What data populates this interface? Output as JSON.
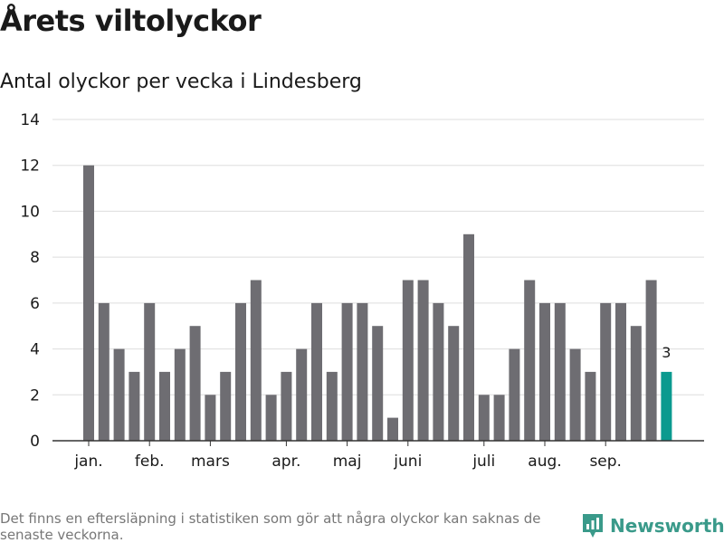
{
  "header": {
    "title": "Årets viltolyckor",
    "subtitle": "Antal olyckor per vecka i Lindesberg"
  },
  "footer": {
    "note": "Det finns en eftersläpning i statistiken som gör att några olyckor kan saknas de senaste veckorna.",
    "brand": "Newsworthy"
  },
  "colors": {
    "bar": "#6e6d72",
    "highlight": "#0b9a8f",
    "grid": "#dddddd",
    "axis": "#333333",
    "text": "#1a1a1a",
    "brand": "#3a9a8a"
  },
  "chart_data": {
    "type": "bar",
    "title": "Antal olyckor per vecka i Lindesberg",
    "xlabel": "",
    "ylabel": "",
    "ylim": [
      0,
      14
    ],
    "yticks": [
      0,
      2,
      4,
      6,
      8,
      10,
      12,
      14
    ],
    "weeks": [
      1,
      2,
      3,
      4,
      5,
      6,
      7,
      8,
      9,
      10,
      11,
      12,
      13,
      14,
      15,
      16,
      17,
      18,
      19,
      20,
      21,
      22,
      23,
      24,
      25,
      26,
      27,
      28,
      29,
      30,
      31,
      32,
      33,
      34,
      35,
      36,
      37,
      38,
      39
    ],
    "values": [
      12,
      6,
      4,
      3,
      6,
      3,
      4,
      5,
      2,
      3,
      6,
      7,
      2,
      3,
      4,
      6,
      3,
      6,
      6,
      5,
      1,
      7,
      7,
      6,
      5,
      9,
      2,
      2,
      4,
      7,
      6,
      6,
      4,
      3,
      6,
      6,
      5,
      7,
      3
    ],
    "highlight_index": 38,
    "highlight_label": "3",
    "month_labels": [
      {
        "label": "jan.",
        "week": 1
      },
      {
        "label": "feb.",
        "week": 5
      },
      {
        "label": "mars",
        "week": 9
      },
      {
        "label": "apr.",
        "week": 14
      },
      {
        "label": "maj",
        "week": 18
      },
      {
        "label": "juni",
        "week": 22
      },
      {
        "label": "juli",
        "week": 27
      },
      {
        "label": "aug.",
        "week": 31
      },
      {
        "label": "sep.",
        "week": 35
      }
    ],
    "grid": true
  }
}
